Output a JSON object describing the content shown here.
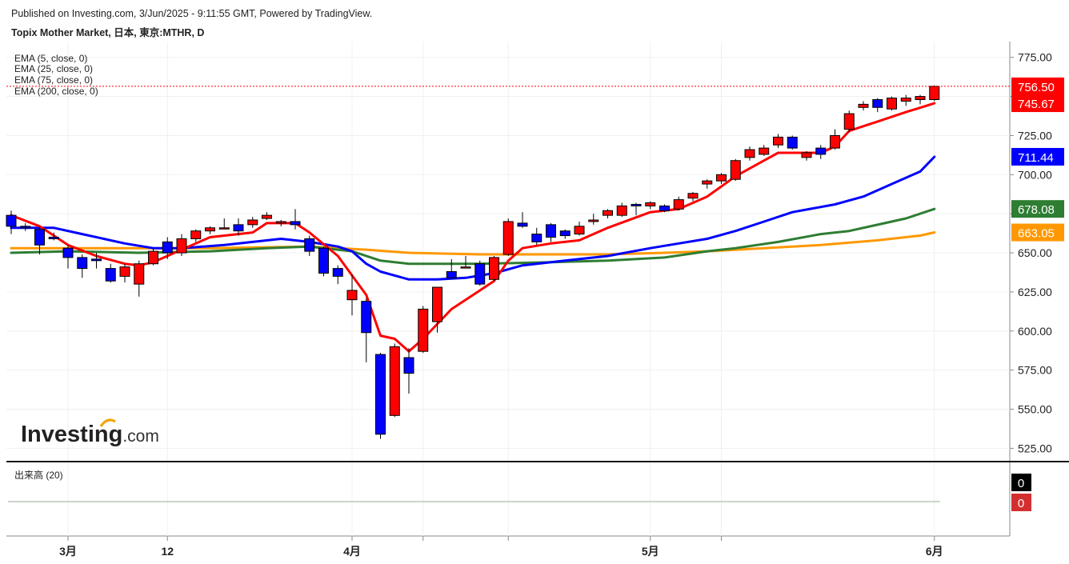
{
  "header": {
    "published": "Published on Investing.com, 3/Jun/2025 - 9:11:55 GMT, Powered by TradingView.",
    "symbol": "Topix Mother Market, 日本, 東京:MTHR, D"
  },
  "legend": [
    "EMA (5, close, 0)",
    "EMA (25, close, 0)",
    "EMA (75, close, 0)",
    "EMA (200, close, 0)"
  ],
  "watermark": {
    "brand": "Investing",
    "suffix": ".com"
  },
  "volume_panel": {
    "label": "出来高 (20)",
    "badges": [
      {
        "text": "0",
        "color": "#000000"
      },
      {
        "text": "0",
        "color": "#d32f2f"
      }
    ]
  },
  "colors": {
    "up": "#ff0000",
    "down": "#0000ff",
    "ema5": "#ff0000",
    "ema25": "#0000ff",
    "ema75": "#2e7d32",
    "ema200": "#ff9800",
    "last_line": "#ff0000"
  },
  "chart_data": {
    "type": "candlestick",
    "y_axis": {
      "ticks": [
        775,
        750,
        725,
        700,
        675,
        650,
        625,
        600,
        575,
        550,
        525
      ],
      "range": [
        517,
        781
      ],
      "tick_labels": [
        "775.00",
        "750.00",
        "725.00",
        "700.00",
        "675.00",
        "650.00",
        "625.00",
        "600.00",
        "575.00",
        "550.00",
        "525.00"
      ]
    },
    "x_axis": {
      "tick_labels": [
        "3月",
        "12",
        "4月",
        "5月",
        "6月"
      ],
      "tick_dates": [
        "2025-03-03",
        "2025-03-12",
        "2025-04-01",
        "2025-05-01",
        "2025-06-02"
      ]
    },
    "price_labels": [
      {
        "text": "756.50",
        "value": 756.5,
        "color": "#ff0000"
      },
      {
        "text": "745.67",
        "value": 745.67,
        "color": "#ff0000"
      },
      {
        "text": "711.44",
        "value": 711.44,
        "color": "#0000ff"
      },
      {
        "text": "678.08",
        "value": 678.08,
        "color": "#2e7d32"
      },
      {
        "text": "663.05",
        "value": 663.05,
        "color": "#ff9800"
      }
    ],
    "last_price": 756.5,
    "candles": [
      {
        "d": "2025-02-25",
        "o": 674,
        "h": 677,
        "l": 662,
        "c": 667
      },
      {
        "d": "2025-02-26",
        "o": 667,
        "h": 669,
        "l": 664,
        "c": 666
      },
      {
        "d": "2025-02-27",
        "o": 665,
        "h": 667,
        "l": 649,
        "c": 655
      },
      {
        "d": "2025-02-28",
        "o": 660,
        "h": 663,
        "l": 658,
        "c": 659
      },
      {
        "d": "2025-03-03",
        "o": 653,
        "h": 655,
        "l": 640,
        "c": 647
      },
      {
        "d": "2025-03-04",
        "o": 647,
        "h": 649,
        "l": 634,
        "c": 640
      },
      {
        "d": "2025-03-05",
        "o": 646,
        "h": 650,
        "l": 640,
        "c": 645
      },
      {
        "d": "2025-03-06",
        "o": 640,
        "h": 643,
        "l": 631,
        "c": 632
      },
      {
        "d": "2025-03-07",
        "o": 635,
        "h": 643,
        "l": 631,
        "c": 641
      },
      {
        "d": "2025-03-10",
        "o": 630,
        "h": 645,
        "l": 622,
        "c": 643
      },
      {
        "d": "2025-03-11",
        "o": 643,
        "h": 653,
        "l": 642,
        "c": 651
      },
      {
        "d": "2025-03-12",
        "o": 657,
        "h": 660,
        "l": 646,
        "c": 650
      },
      {
        "d": "2025-03-13",
        "o": 650,
        "h": 662,
        "l": 648,
        "c": 659
      },
      {
        "d": "2025-03-14",
        "o": 659,
        "h": 665,
        "l": 657,
        "c": 664
      },
      {
        "d": "2025-03-17",
        "o": 664,
        "h": 667,
        "l": 662,
        "c": 666
      },
      {
        "d": "2025-03-18",
        "o": 666,
        "h": 672,
        "l": 665,
        "c": 666
      },
      {
        "d": "2025-03-19",
        "o": 668,
        "h": 672,
        "l": 661,
        "c": 664
      },
      {
        "d": "2025-03-21",
        "o": 668,
        "h": 673,
        "l": 666,
        "c": 671
      },
      {
        "d": "2025-03-24",
        "o": 672,
        "h": 676,
        "l": 671,
        "c": 674
      },
      {
        "d": "2025-03-25",
        "o": 669,
        "h": 671,
        "l": 667,
        "c": 670
      },
      {
        "d": "2025-03-26",
        "o": 670,
        "h": 678,
        "l": 665,
        "c": 668
      },
      {
        "d": "2025-03-27",
        "o": 659,
        "h": 661,
        "l": 648,
        "c": 651
      },
      {
        "d": "2025-03-28",
        "o": 653,
        "h": 654,
        "l": 635,
        "c": 637
      },
      {
        "d": "2025-03-31",
        "o": 640,
        "h": 642,
        "l": 630,
        "c": 635
      },
      {
        "d": "2025-04-01",
        "o": 620,
        "h": 636,
        "l": 610,
        "c": 626
      },
      {
        "d": "2025-04-02",
        "o": 619,
        "h": 621,
        "l": 580,
        "c": 599
      },
      {
        "d": "2025-04-03",
        "o": 585,
        "h": 586,
        "l": 531,
        "c": 534
      },
      {
        "d": "2025-04-04",
        "o": 546,
        "h": 592,
        "l": 545,
        "c": 590
      },
      {
        "d": "2025-04-07",
        "o": 583,
        "h": 589,
        "l": 560,
        "c": 573
      },
      {
        "d": "2025-04-08",
        "o": 587,
        "h": 616,
        "l": 586,
        "c": 614
      },
      {
        "d": "2025-04-09",
        "o": 606,
        "h": 627,
        "l": 599,
        "c": 628
      },
      {
        "d": "2025-04-10",
        "o": 638,
        "h": 646,
        "l": 634,
        "c": 634
      },
      {
        "d": "2025-04-11",
        "o": 641,
        "h": 648,
        "l": 641,
        "c": 641
      },
      {
        "d": "2025-04-14",
        "o": 643,
        "h": 645,
        "l": 629,
        "c": 630
      },
      {
        "d": "2025-04-15",
        "o": 633,
        "h": 648,
        "l": 632,
        "c": 647
      },
      {
        "d": "2025-04-16",
        "o": 649,
        "h": 672,
        "l": 648,
        "c": 670
      },
      {
        "d": "2025-04-17",
        "o": 669,
        "h": 676,
        "l": 666,
        "c": 667
      },
      {
        "d": "2025-04-18",
        "o": 662,
        "h": 666,
        "l": 655,
        "c": 657
      },
      {
        "d": "2025-04-21",
        "o": 668,
        "h": 669,
        "l": 657,
        "c": 660
      },
      {
        "d": "2025-04-22",
        "o": 664,
        "h": 665,
        "l": 659,
        "c": 661
      },
      {
        "d": "2025-04-23",
        "o": 662,
        "h": 670,
        "l": 661,
        "c": 667
      },
      {
        "d": "2025-04-24",
        "o": 670,
        "h": 675,
        "l": 668,
        "c": 671
      },
      {
        "d": "2025-04-25",
        "o": 674,
        "h": 678,
        "l": 672,
        "c": 677
      },
      {
        "d": "2025-04-28",
        "o": 674,
        "h": 682,
        "l": 673,
        "c": 680
      },
      {
        "d": "2025-04-30",
        "o": 681,
        "h": 682,
        "l": 674,
        "c": 680
      },
      {
        "d": "2025-05-01",
        "o": 680,
        "h": 683,
        "l": 678,
        "c": 682
      },
      {
        "d": "2025-05-02",
        "o": 680,
        "h": 681,
        "l": 676,
        "c": 677
      },
      {
        "d": "2025-05-07",
        "o": 678,
        "h": 686,
        "l": 677,
        "c": 684
      },
      {
        "d": "2025-05-08",
        "o": 685,
        "h": 689,
        "l": 683,
        "c": 688
      },
      {
        "d": "2025-05-09",
        "o": 694,
        "h": 697,
        "l": 691,
        "c": 696
      },
      {
        "d": "2025-05-12",
        "o": 696,
        "h": 701,
        "l": 694,
        "c": 700
      },
      {
        "d": "2025-05-13",
        "o": 697,
        "h": 710,
        "l": 696,
        "c": 709
      },
      {
        "d": "2025-05-14",
        "o": 711,
        "h": 718,
        "l": 709,
        "c": 716
      },
      {
        "d": "2025-05-15",
        "o": 713,
        "h": 719,
        "l": 712,
        "c": 717
      },
      {
        "d": "2025-05-16",
        "o": 719,
        "h": 726,
        "l": 717,
        "c": 724
      },
      {
        "d": "2025-05-19",
        "o": 724,
        "h": 725,
        "l": 716,
        "c": 717
      },
      {
        "d": "2025-05-20",
        "o": 711,
        "h": 715,
        "l": 709,
        "c": 714
      },
      {
        "d": "2025-05-21",
        "o": 717,
        "h": 719,
        "l": 710,
        "c": 713
      },
      {
        "d": "2025-05-22",
        "o": 717,
        "h": 729,
        "l": 716,
        "c": 725
      },
      {
        "d": "2025-05-23",
        "o": 729,
        "h": 741,
        "l": 727,
        "c": 739
      },
      {
        "d": "2025-05-26",
        "o": 743,
        "h": 747,
        "l": 741,
        "c": 745
      },
      {
        "d": "2025-05-27",
        "o": 748,
        "h": 749,
        "l": 740,
        "c": 743
      },
      {
        "d": "2025-05-28",
        "o": 742,
        "h": 750,
        "l": 741,
        "c": 749
      },
      {
        "d": "2025-05-29",
        "o": 747,
        "h": 751,
        "l": 744,
        "c": 749
      },
      {
        "d": "2025-05-30",
        "o": 748,
        "h": 751,
        "l": 745,
        "c": 750
      },
      {
        "d": "2025-06-02",
        "o": 748,
        "h": 757,
        "l": 747,
        "c": 756.5
      }
    ],
    "ema": [
      {
        "name": "EMA (5, close, 0)",
        "values": [
          {
            "d": "2025-02-25",
            "v": 674
          },
          {
            "d": "2025-02-27",
            "v": 667
          },
          {
            "d": "2025-03-03",
            "v": 655
          },
          {
            "d": "2025-03-05",
            "v": 648
          },
          {
            "d": "2025-03-07",
            "v": 643
          },
          {
            "d": "2025-03-10",
            "v": 642
          },
          {
            "d": "2025-03-11",
            "v": 644
          },
          {
            "d": "2025-03-13",
            "v": 652
          },
          {
            "d": "2025-03-17",
            "v": 660
          },
          {
            "d": "2025-03-21",
            "v": 663
          },
          {
            "d": "2025-03-24",
            "v": 669
          },
          {
            "d": "2025-03-26",
            "v": 669
          },
          {
            "d": "2025-03-27",
            "v": 663
          },
          {
            "d": "2025-03-31",
            "v": 648
          },
          {
            "d": "2025-04-02",
            "v": 623
          },
          {
            "d": "2025-04-03",
            "v": 597
          },
          {
            "d": "2025-04-04",
            "v": 595
          },
          {
            "d": "2025-04-07",
            "v": 587
          },
          {
            "d": "2025-04-08",
            "v": 595
          },
          {
            "d": "2025-04-10",
            "v": 614
          },
          {
            "d": "2025-04-14",
            "v": 626
          },
          {
            "d": "2025-04-15",
            "v": 632
          },
          {
            "d": "2025-04-16",
            "v": 645
          },
          {
            "d": "2025-04-17",
            "v": 653
          },
          {
            "d": "2025-04-21",
            "v": 656
          },
          {
            "d": "2025-04-23",
            "v": 658
          },
          {
            "d": "2025-04-25",
            "v": 666
          },
          {
            "d": "2025-05-01",
            "v": 676
          },
          {
            "d": "2025-05-07",
            "v": 678
          },
          {
            "d": "2025-05-09",
            "v": 686
          },
          {
            "d": "2025-05-13",
            "v": 699
          },
          {
            "d": "2025-05-15",
            "v": 709
          },
          {
            "d": "2025-05-16",
            "v": 714
          },
          {
            "d": "2025-05-19",
            "v": 714
          },
          {
            "d": "2025-05-21",
            "v": 714
          },
          {
            "d": "2025-05-22",
            "v": 718
          },
          {
            "d": "2025-05-23",
            "v": 728
          },
          {
            "d": "2025-05-27",
            "v": 734
          },
          {
            "d": "2025-05-29",
            "v": 740
          },
          {
            "d": "2025-06-02",
            "v": 745.67
          }
        ]
      },
      {
        "name": "EMA (25, close, 0)",
        "values": [
          {
            "d": "2025-02-25",
            "v": 666
          },
          {
            "d": "2025-02-28",
            "v": 666
          },
          {
            "d": "2025-03-04",
            "v": 662
          },
          {
            "d": "2025-03-07",
            "v": 656
          },
          {
            "d": "2025-03-11",
            "v": 653
          },
          {
            "d": "2025-03-13",
            "v": 653
          },
          {
            "d": "2025-03-18",
            "v": 655
          },
          {
            "d": "2025-03-21",
            "v": 657
          },
          {
            "d": "2025-03-25",
            "v": 659
          },
          {
            "d": "2025-03-27",
            "v": 657
          },
          {
            "d": "2025-03-31",
            "v": 654
          },
          {
            "d": "2025-04-01",
            "v": 651
          },
          {
            "d": "2025-04-02",
            "v": 643
          },
          {
            "d": "2025-04-03",
            "v": 638
          },
          {
            "d": "2025-04-07",
            "v": 633
          },
          {
            "d": "2025-04-09",
            "v": 633
          },
          {
            "d": "2025-04-11",
            "v": 634
          },
          {
            "d": "2025-04-15",
            "v": 637
          },
          {
            "d": "2025-04-17",
            "v": 642
          },
          {
            "d": "2025-04-22",
            "v": 645
          },
          {
            "d": "2025-04-25",
            "v": 648
          },
          {
            "d": "2025-05-01",
            "v": 653
          },
          {
            "d": "2025-05-07",
            "v": 656
          },
          {
            "d": "2025-05-09",
            "v": 659
          },
          {
            "d": "2025-05-13",
            "v": 664
          },
          {
            "d": "2025-05-15",
            "v": 670
          },
          {
            "d": "2025-05-19",
            "v": 676
          },
          {
            "d": "2025-05-22",
            "v": 681
          },
          {
            "d": "2025-05-26",
            "v": 686
          },
          {
            "d": "2025-05-28",
            "v": 694
          },
          {
            "d": "2025-05-30",
            "v": 702
          },
          {
            "d": "2025-06-02",
            "v": 711.44
          }
        ]
      },
      {
        "name": "EMA (75, close, 0)",
        "values": [
          {
            "d": "2025-02-25",
            "v": 650
          },
          {
            "d": "2025-03-03",
            "v": 651
          },
          {
            "d": "2025-03-10",
            "v": 650
          },
          {
            "d": "2025-03-17",
            "v": 651
          },
          {
            "d": "2025-03-24",
            "v": 653
          },
          {
            "d": "2025-03-27",
            "v": 654
          },
          {
            "d": "2025-04-01",
            "v": 651
          },
          {
            "d": "2025-04-03",
            "v": 645
          },
          {
            "d": "2025-04-07",
            "v": 643
          },
          {
            "d": "2025-04-14",
            "v": 643
          },
          {
            "d": "2025-04-21",
            "v": 644
          },
          {
            "d": "2025-04-25",
            "v": 645
          },
          {
            "d": "2025-05-02",
            "v": 647
          },
          {
            "d": "2025-05-09",
            "v": 651
          },
          {
            "d": "2025-05-13",
            "v": 653
          },
          {
            "d": "2025-05-16",
            "v": 657
          },
          {
            "d": "2025-05-21",
            "v": 662
          },
          {
            "d": "2025-05-23",
            "v": 664
          },
          {
            "d": "2025-05-27",
            "v": 668
          },
          {
            "d": "2025-05-29",
            "v": 672
          },
          {
            "d": "2025-06-02",
            "v": 678.08
          }
        ]
      },
      {
        "name": "EMA (200, close, 0)",
        "values": [
          {
            "d": "2025-02-25",
            "v": 653
          },
          {
            "d": "2025-03-07",
            "v": 653
          },
          {
            "d": "2025-03-17",
            "v": 653
          },
          {
            "d": "2025-03-27",
            "v": 654
          },
          {
            "d": "2025-04-02",
            "v": 652
          },
          {
            "d": "2025-04-07",
            "v": 650
          },
          {
            "d": "2025-04-14",
            "v": 649
          },
          {
            "d": "2025-04-25",
            "v": 649
          },
          {
            "d": "2025-05-02",
            "v": 650
          },
          {
            "d": "2025-05-09",
            "v": 651
          },
          {
            "d": "2025-05-15",
            "v": 653
          },
          {
            "d": "2025-05-21",
            "v": 655
          },
          {
            "d": "2025-05-27",
            "v": 658
          },
          {
            "d": "2025-05-30",
            "v": 661
          },
          {
            "d": "2025-06-02",
            "v": 663.05
          }
        ]
      }
    ]
  }
}
